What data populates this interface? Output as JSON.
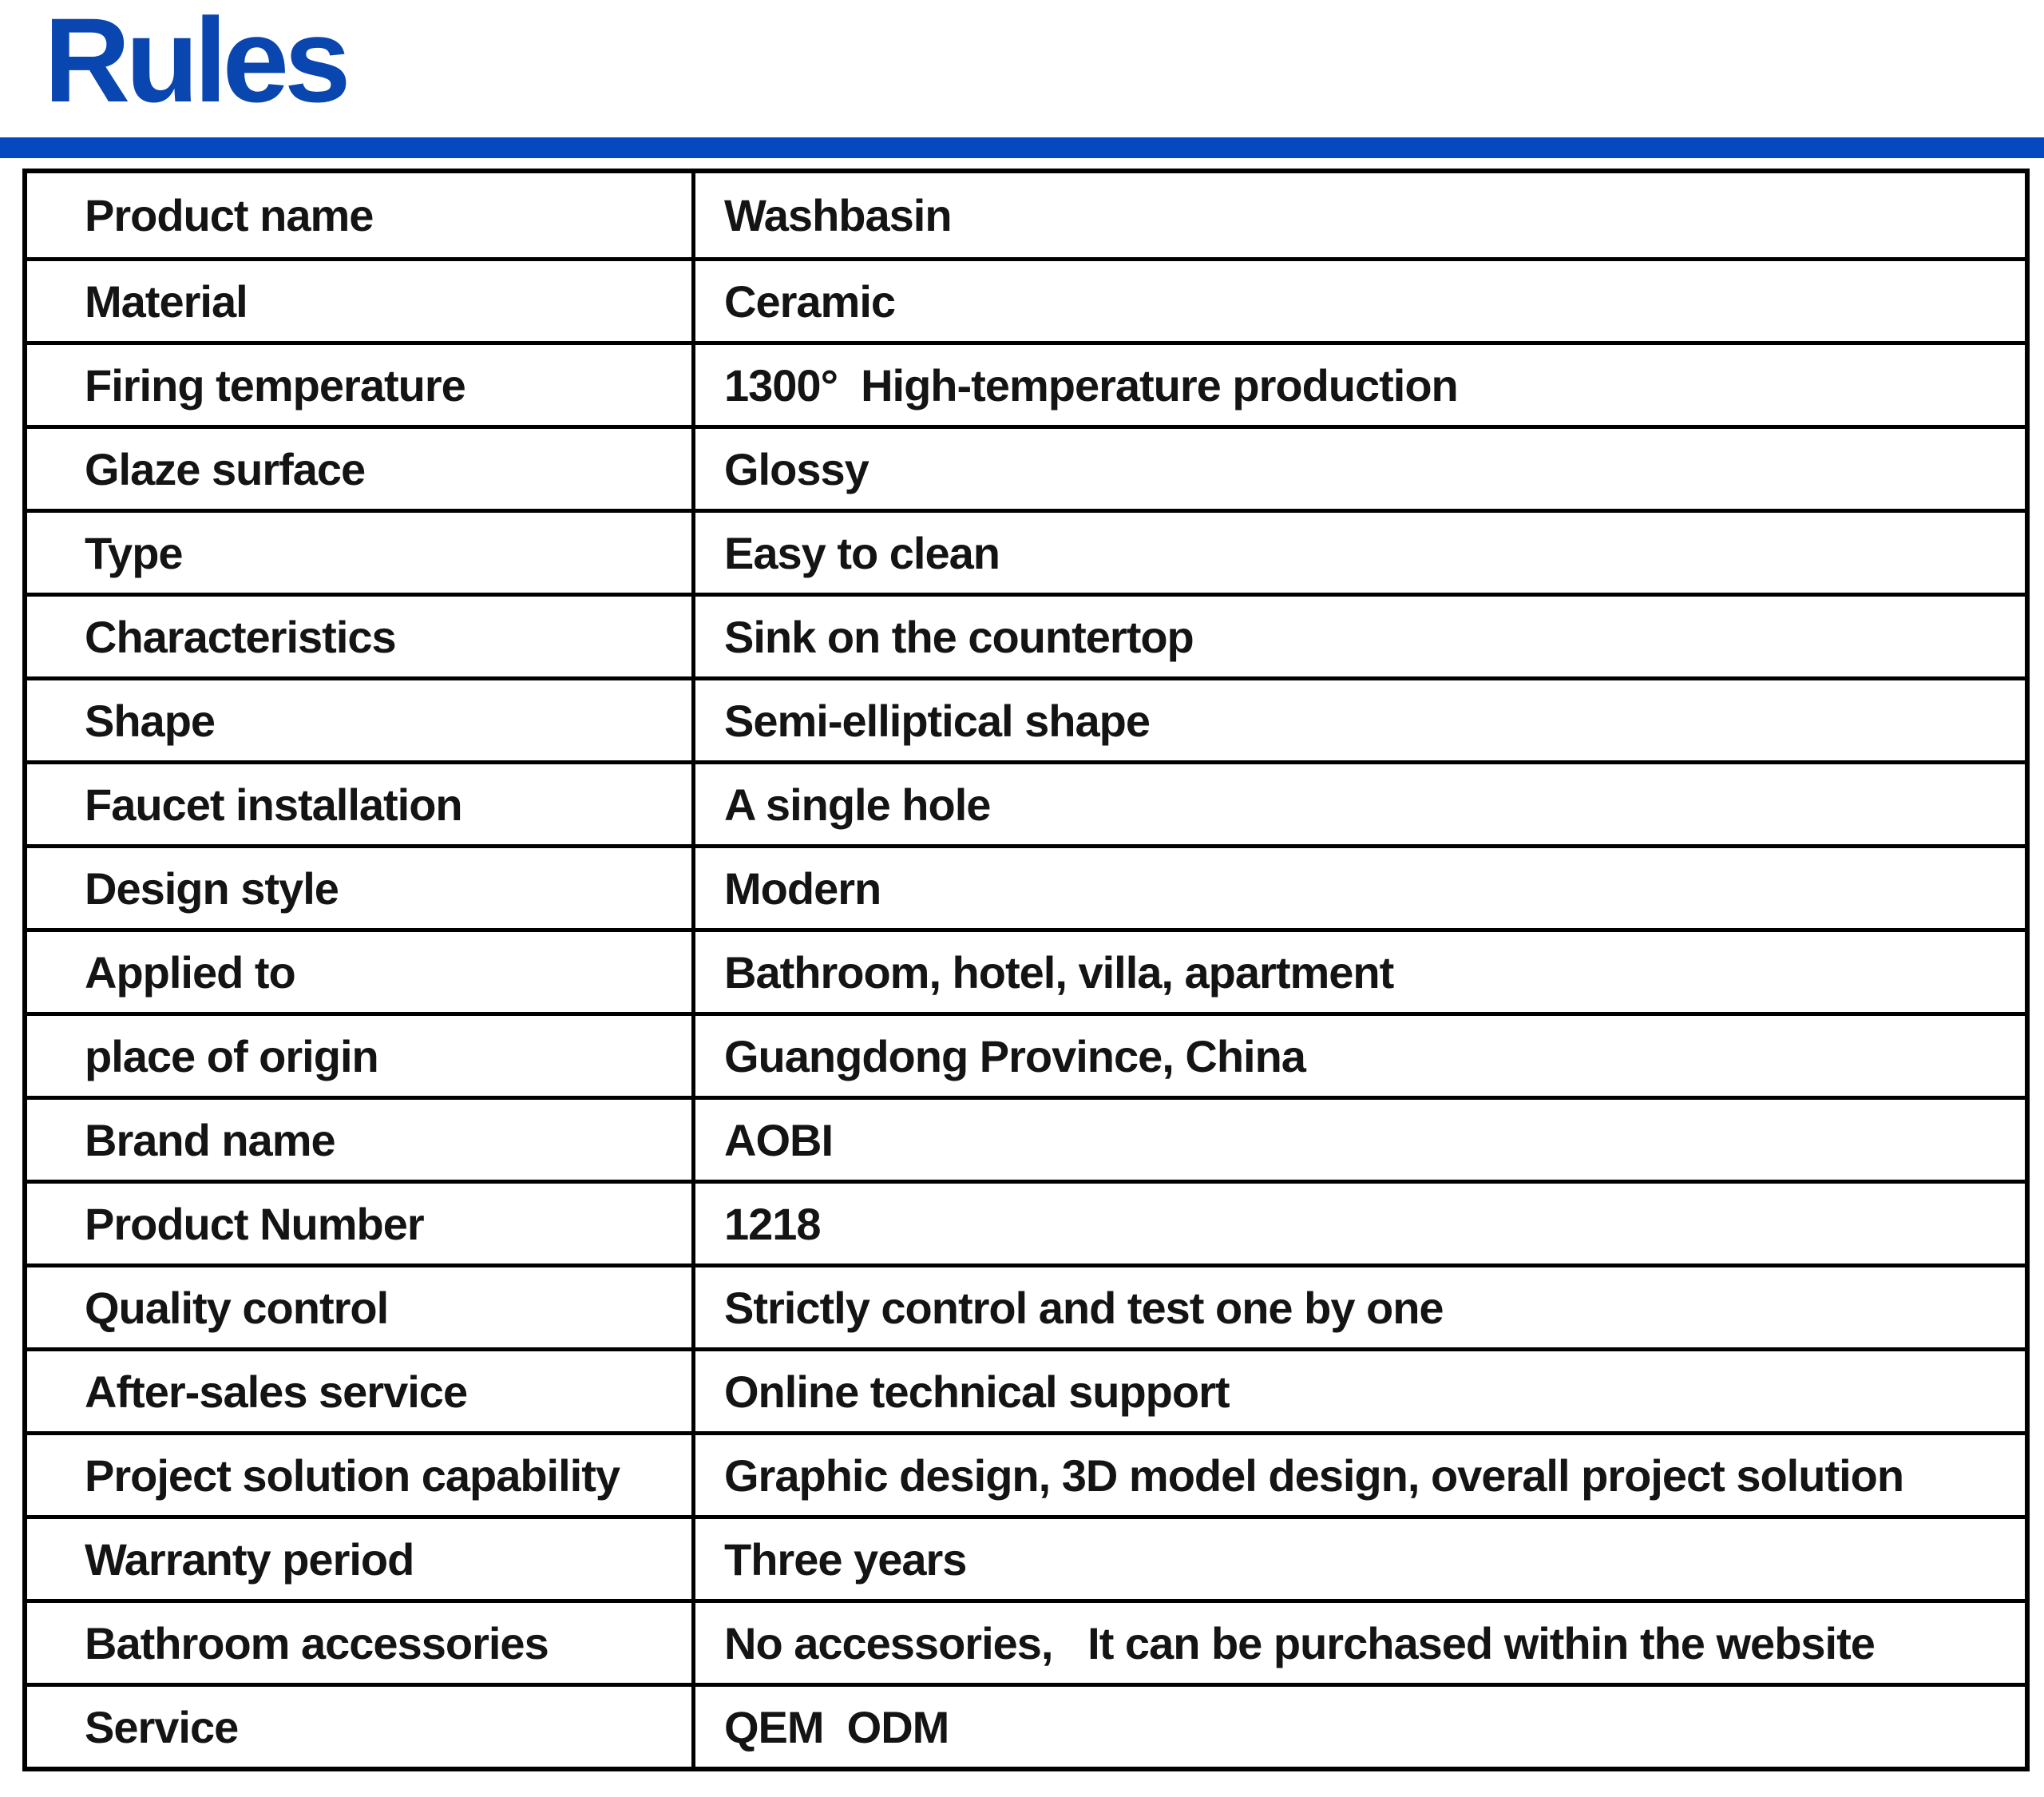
{
  "header": {
    "title": "Rules",
    "title_color": "#0a46b0",
    "underline_color": "#0449c0"
  },
  "table": {
    "rows": [
      {
        "label": "Product name",
        "value": "Washbasin"
      },
      {
        "label": "Material",
        "value": "Ceramic"
      },
      {
        "label": "Firing temperature",
        "value": "1300°  High-temperature production"
      },
      {
        "label": "Glaze surface",
        "value": "Glossy"
      },
      {
        "label": "Type",
        "value": "Easy to clean"
      },
      {
        "label": "Characteristics",
        "value": "Sink on the countertop"
      },
      {
        "label": "Shape",
        "value": "Semi-elliptical shape"
      },
      {
        "label": "Faucet installation",
        "value": "A single hole"
      },
      {
        "label": "Design style",
        "value": "Modern"
      },
      {
        "label": "Applied to",
        "value": "Bathroom, hotel, villa, apartment"
      },
      {
        "label": "place of origin",
        "value": "Guangdong Province, China"
      },
      {
        "label": "Brand name",
        "value": "AOBI"
      },
      {
        "label": "Product Number",
        "value": "1218"
      },
      {
        "label": "Quality control",
        "value": "Strictly control and test one by one"
      },
      {
        "label": "After-sales service",
        "value": "Online technical support"
      },
      {
        "label": "Project solution capability",
        "value": "Graphic design, 3D model design, overall project solution"
      },
      {
        "label": "Warranty period",
        "value": "Three years"
      },
      {
        "label": "Bathroom accessories",
        "value": "No accessories,   It can be purchased within the website"
      },
      {
        "label": "Service",
        "value": "QEM  ODM"
      }
    ]
  }
}
